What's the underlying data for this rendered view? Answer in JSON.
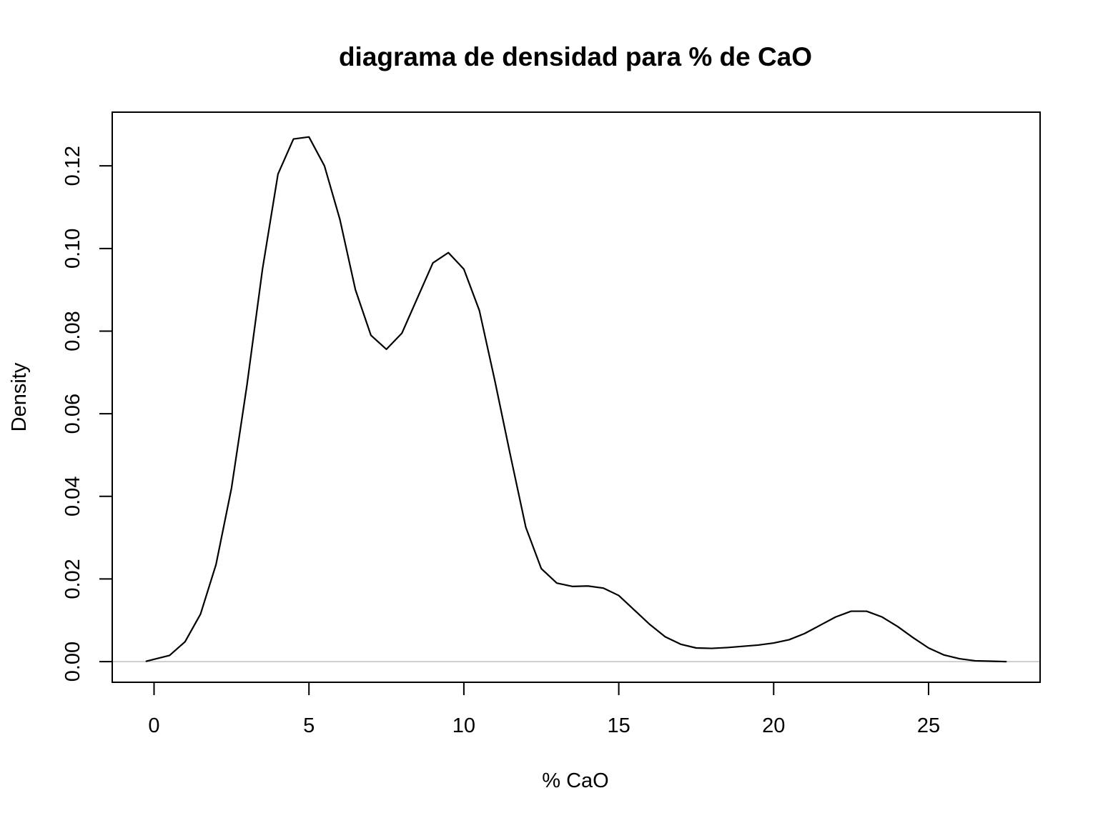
{
  "chart_data": {
    "type": "line",
    "title": "diagrama de densidad para % de CaO",
    "xlabel": "% CaO",
    "ylabel": "Density",
    "xlim": [
      -1.35,
      28.6
    ],
    "ylim": [
      -0.005,
      0.133
    ],
    "x_ticks": [
      0,
      5,
      10,
      15,
      20,
      25
    ],
    "x_tick_labels": [
      "0",
      "5",
      "10",
      "15",
      "20",
      "25"
    ],
    "y_ticks": [
      0,
      0.02,
      0.04,
      0.06,
      0.08,
      0.1,
      0.12
    ],
    "y_tick_labels": [
      "0.00",
      "0.02",
      "0.04",
      "0.06",
      "0.08",
      "0.10",
      "0.12"
    ],
    "grid": false,
    "baseline_y": 0,
    "baseline_color": "#c0c0c0",
    "line_color": "#000000",
    "series": [
      {
        "x": [
          -0.25,
          0.5,
          1.0,
          1.5,
          2.0,
          2.5,
          3.0,
          3.5,
          4.0,
          4.5,
          5.0,
          5.5,
          6.0,
          6.5,
          7.0,
          7.5,
          8.0,
          8.5,
          9.0,
          9.5,
          10.0,
          10.5,
          11.0,
          11.5,
          12.0,
          12.5,
          13.0,
          13.5,
          14.0,
          14.5,
          15.0,
          15.5,
          16.0,
          16.5,
          17.0,
          17.5,
          18.0,
          18.5,
          19.0,
          19.5,
          20.0,
          20.5,
          21.0,
          21.5,
          22.0,
          22.5,
          23.0,
          23.5,
          24.0,
          24.5,
          25.0,
          25.5,
          26.0,
          26.5,
          27.0,
          27.5
        ],
        "y": [
          0.0001,
          0.0015,
          0.0048,
          0.0115,
          0.0235,
          0.042,
          0.067,
          0.095,
          0.118,
          0.1265,
          0.127,
          0.12,
          0.107,
          0.09,
          0.079,
          0.0756,
          0.0795,
          0.088,
          0.0965,
          0.099,
          0.095,
          0.085,
          0.068,
          0.05,
          0.0325,
          0.0225,
          0.019,
          0.0182,
          0.0183,
          0.0178,
          0.016,
          0.0125,
          0.009,
          0.006,
          0.0042,
          0.0033,
          0.0032,
          0.0034,
          0.0037,
          0.004,
          0.0045,
          0.0053,
          0.0068,
          0.0088,
          0.0108,
          0.0122,
          0.0122,
          0.0108,
          0.0085,
          0.0058,
          0.0033,
          0.0016,
          0.0007,
          0.0002,
          0.0001,
          0.0
        ]
      }
    ]
  }
}
